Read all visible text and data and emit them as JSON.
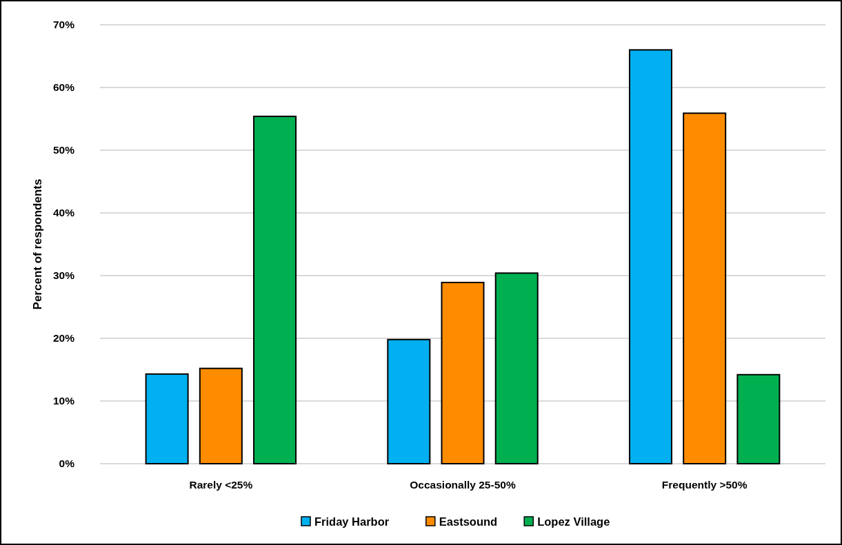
{
  "chart_data": {
    "type": "bar",
    "ylabel": "Percent of respondents",
    "categories": [
      "Rarely <25%",
      "Occasionally 25-50%",
      "Frequently >50%"
    ],
    "series": [
      {
        "name": "Friday Harbor",
        "color": "#00b0f0",
        "values": [
          14.3,
          19.8,
          66.0
        ]
      },
      {
        "name": "Eastsound",
        "color": "#ff8c00",
        "values": [
          15.2,
          28.9,
          55.9
        ]
      },
      {
        "name": "Lopez Village",
        "color": "#00b050",
        "values": [
          55.4,
          30.4,
          14.2
        ]
      }
    ],
    "ylim": [
      0,
      70
    ],
    "yticks": [
      {
        "value": 0,
        "label": "0%"
      },
      {
        "value": 10,
        "label": "10%"
      },
      {
        "value": 20,
        "label": "20%"
      },
      {
        "value": 30,
        "label": "30%"
      },
      {
        "value": 40,
        "label": "40%"
      },
      {
        "value": 50,
        "label": "50%"
      },
      {
        "value": 60,
        "label": "60%"
      },
      {
        "value": 70,
        "label": "70%"
      }
    ],
    "grid": "y",
    "legend": "bottom"
  }
}
